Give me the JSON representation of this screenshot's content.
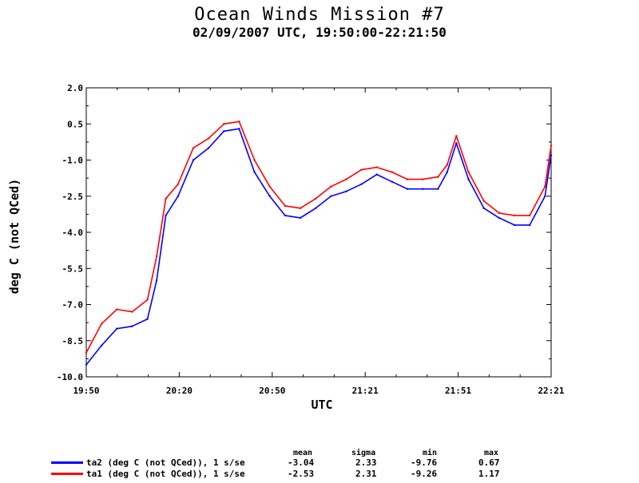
{
  "chart_data": {
    "type": "line",
    "title": "Ocean Winds Mission #7",
    "subtitle": "02/09/2007  UTC, 19:50:00-22:21:50",
    "xlabel": "UTC",
    "ylabel": "deg C (not QCed)",
    "ylim": [
      -10.0,
      2.0
    ],
    "y_ticks": [
      "2.0",
      "0.5",
      "-1.0",
      "-2.5",
      "-4.0",
      "-5.5",
      "-7.0",
      "-8.5",
      "-10.0"
    ],
    "x_ticks": [
      "19:50",
      "20:20",
      "20:50",
      "21:21",
      "21:51",
      "22:21"
    ],
    "grid": false,
    "x": [
      0,
      5,
      10,
      15,
      20,
      23,
      26,
      30,
      35,
      40,
      45,
      50,
      55,
      60,
      65,
      70,
      75,
      80,
      85,
      90,
      95,
      100,
      105,
      110,
      115,
      118,
      121,
      125,
      130,
      135,
      140,
      145,
      150,
      152
    ],
    "series": [
      {
        "name": "ta2 (deg C (not QCed)), 1 s/se",
        "color": "#0000ff",
        "values": [
          -9.5,
          -8.7,
          -8.0,
          -7.9,
          -7.6,
          -6.0,
          -3.3,
          -2.5,
          -1.0,
          -0.5,
          0.2,
          0.3,
          -1.5,
          -2.5,
          -3.3,
          -3.4,
          -3.0,
          -2.5,
          -2.3,
          -2.0,
          -1.6,
          -1.9,
          -2.2,
          -2.2,
          -2.2,
          -1.5,
          -0.3,
          -1.8,
          -3.0,
          -3.4,
          -3.7,
          -3.7,
          -2.5,
          -0.8
        ]
      },
      {
        "name": "ta1 (deg C (not QCed)), 1 s/se",
        "color": "#ff0000",
        "values": [
          -9.0,
          -7.8,
          -7.2,
          -7.3,
          -6.8,
          -5.0,
          -2.6,
          -2.0,
          -0.5,
          -0.1,
          0.5,
          0.6,
          -1.0,
          -2.1,
          -2.9,
          -3.0,
          -2.6,
          -2.1,
          -1.8,
          -1.4,
          -1.3,
          -1.5,
          -1.8,
          -1.8,
          -1.7,
          -1.2,
          0.0,
          -1.5,
          -2.7,
          -3.2,
          -3.3,
          -3.3,
          -2.1,
          -0.4
        ]
      }
    ]
  },
  "legend": {
    "headers": [
      "mean",
      "sigma",
      "min",
      "max"
    ],
    "rows": [
      {
        "label": "ta2 (deg C (not QCed)), 1 s/se",
        "color": "#0000ff",
        "mean": "-3.04",
        "sigma": "2.33",
        "min": "-9.76",
        "max": "0.67"
      },
      {
        "label": "ta1 (deg C (not QCed)), 1 s/se",
        "color": "#ff0000",
        "mean": "-2.53",
        "sigma": "2.31",
        "min": "-9.26",
        "max": "1.17"
      }
    ]
  }
}
